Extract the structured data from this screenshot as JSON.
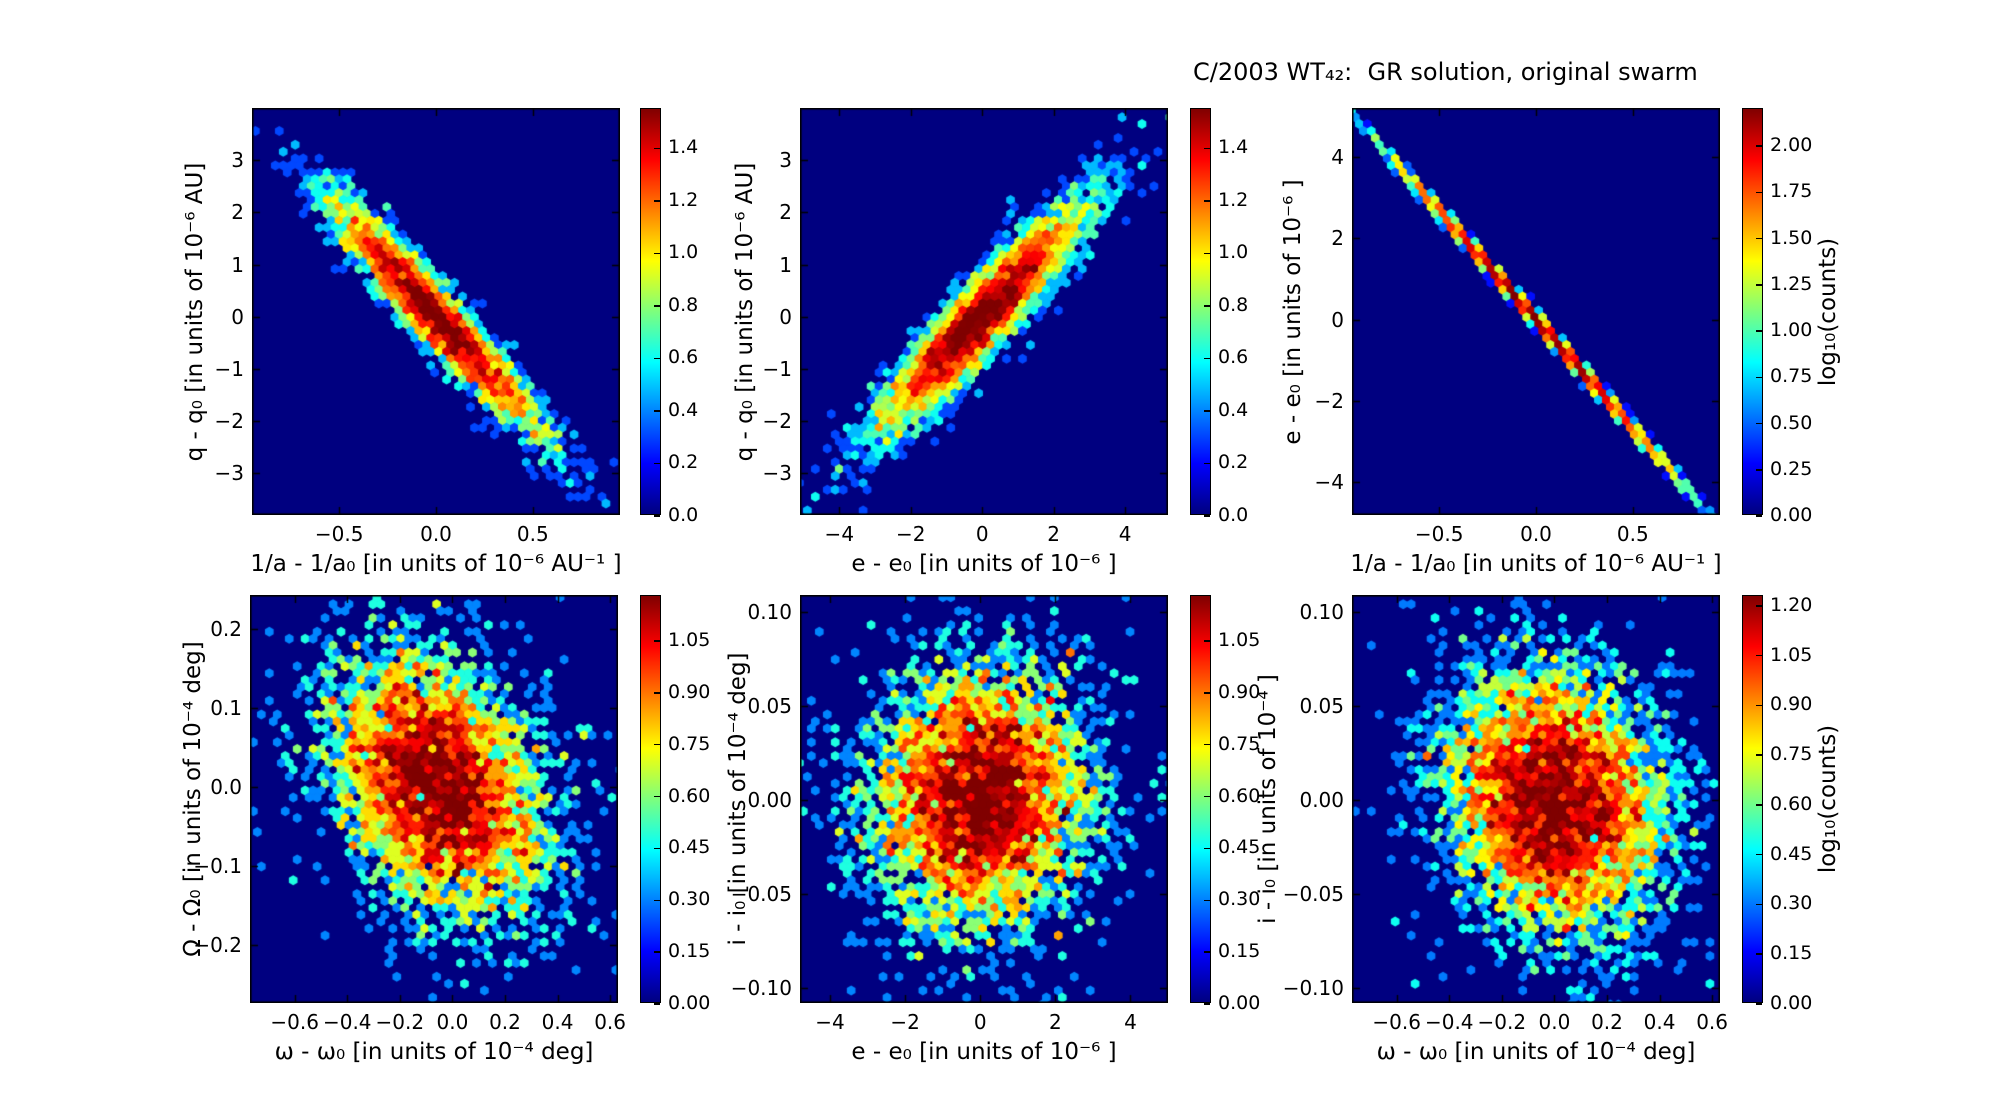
{
  "title": "C/2003 WT₄₂:  GR solution, original swarm",
  "colors": {
    "figure_background": "#ffffff",
    "plot_background": "#00007f",
    "axis": "#000000",
    "colormap": "jet"
  },
  "chart_data": [
    {
      "id": "top-left",
      "type": "hexbin",
      "xlabel": "1/a - 1/a₀ [in units of 10⁻⁶ AU⁻¹ ]",
      "ylabel": "q - q₀ [in units of 10⁻⁶ AU]",
      "xlim": [
        -0.95,
        0.95
      ],
      "ylim": [
        -3.8,
        4.0
      ],
      "x_tick_vals": [
        -0.5,
        0.0,
        0.5
      ],
      "x_tick_labels": [
        "−0.5",
        "0.0",
        "0.5"
      ],
      "y_tick_vals": [
        3,
        2,
        1,
        0,
        -1,
        -2,
        -3
      ],
      "y_tick_labels": [
        "3",
        "2",
        "1",
        "0",
        "−1",
        "−2",
        "−3"
      ],
      "colorbar": {
        "label": "",
        "vmax": 1.55,
        "tick_vals": [
          1.4,
          1.2,
          1.0,
          0.8,
          0.6,
          0.4,
          0.2,
          0.0
        ],
        "tick_labels": [
          "1.4",
          "1.2",
          "1.0",
          "0.8",
          "0.6",
          "0.4",
          "0.2",
          "0.0"
        ]
      },
      "distribution": {
        "description": "strong negative correlation ellipse, log10(counts) peak ~1.5",
        "cx": 0,
        "cy": 0,
        "sigma_x": 0.27,
        "sigma_y": 1.12,
        "rho": -0.95,
        "peak_counts": 38,
        "tail_frac": 0.08,
        "tail_scale": 1.7,
        "seed": 101
      }
    },
    {
      "id": "top-middle",
      "type": "hexbin",
      "xlabel": "e - e₀ [in units of 10⁻⁶ ]",
      "ylabel": "q - q₀ [in units of 10⁻⁶ AU]",
      "xlim": [
        -5.1,
        5.2
      ],
      "ylim": [
        -3.8,
        4.0
      ],
      "x_tick_vals": [
        -4,
        -2,
        0,
        2,
        4
      ],
      "x_tick_labels": [
        "−4",
        "−2",
        "0",
        "2",
        "4"
      ],
      "y_tick_vals": [
        3,
        2,
        1,
        0,
        -1,
        -2,
        -3
      ],
      "y_tick_labels": [
        "3",
        "2",
        "1",
        "0",
        "−1",
        "−2",
        "−3"
      ],
      "colorbar": {
        "label": "",
        "vmax": 1.55,
        "tick_vals": [
          1.4,
          1.2,
          1.0,
          0.8,
          0.6,
          0.4,
          0.2,
          0.0
        ],
        "tick_labels": [
          "1.4",
          "1.2",
          "1.0",
          "0.8",
          "0.6",
          "0.4",
          "0.2",
          "0.0"
        ]
      },
      "distribution": {
        "description": "strong positive correlation ellipse, log10(counts) peak ~1.5",
        "cx": 0,
        "cy": 0,
        "sigma_x": 1.5,
        "sigma_y": 1.12,
        "rho": 0.93,
        "peak_counts": 38,
        "tail_frac": 0.08,
        "tail_scale": 1.7,
        "seed": 202
      }
    },
    {
      "id": "top-right",
      "type": "hexbin",
      "xlabel": "1/a - 1/a₀ [in units of 10⁻⁶ AU⁻¹ ]",
      "ylabel": "e - e₀ [in units of 10⁻⁶ ]",
      "xlim": [
        -0.95,
        0.95
      ],
      "ylim": [
        -4.8,
        5.2
      ],
      "x_tick_vals": [
        -0.5,
        0.0,
        0.5
      ],
      "x_tick_labels": [
        "−0.5",
        "0.0",
        "0.5"
      ],
      "y_tick_vals": [
        4,
        2,
        0,
        -2,
        -4
      ],
      "y_tick_labels": [
        "4",
        "2",
        "0",
        "−2",
        "−4"
      ],
      "colorbar": {
        "label": "log₁₀(counts)",
        "vmax": 2.2,
        "tick_vals": [
          2.0,
          1.75,
          1.5,
          1.25,
          1.0,
          0.75,
          0.5,
          0.25,
          0.0
        ],
        "tick_labels": [
          "2.00",
          "1.75",
          "1.50",
          "1.25",
          "1.00",
          "0.75",
          "0.50",
          "0.25",
          "0.00"
        ]
      },
      "distribution": {
        "description": "extremely tight anti-correlated line, red core, blue ends",
        "cx": 0,
        "cy": 0,
        "sigma_x": 0.35,
        "sigma_y": 1.87,
        "rho": -0.9985,
        "peak_counts": 170,
        "tail_frac": 0.02,
        "tail_scale": 1.6,
        "seed": 303
      }
    },
    {
      "id": "bottom-left",
      "type": "hexbin",
      "xlabel": "ω - ω₀ [in units of 10⁻⁴ deg]",
      "ylabel": "Ω - Ω₀ [in units of 10⁻⁴ deg]",
      "xlim": [
        -0.77,
        0.63
      ],
      "ylim": [
        -0.273,
        0.243
      ],
      "x_tick_vals": [
        -0.6,
        -0.4,
        -0.2,
        0.0,
        0.2,
        0.4,
        0.6
      ],
      "x_tick_labels": [
        "−0.6",
        "−0.4",
        "−0.2",
        "0.0",
        "0.2",
        "0.4",
        "0.6"
      ],
      "y_tick_vals": [
        0.2,
        0.1,
        0.0,
        -0.1,
        -0.2
      ],
      "y_tick_labels": [
        "0.2",
        "0.1",
        "0.0",
        "−0.1",
        "−0.2"
      ],
      "colorbar": {
        "label": "",
        "vmax": 1.18,
        "tick_vals": [
          1.05,
          0.9,
          0.75,
          0.6,
          0.45,
          0.3,
          0.15,
          0.0
        ],
        "tick_labels": [
          "1.05",
          "0.90",
          "0.75",
          "0.60",
          "0.45",
          "0.30",
          "0.15",
          "0.00"
        ]
      },
      "distribution": {
        "description": "broad noisy blob, slight negative tilt, log10(counts) peak ~1.18",
        "cx": -0.05,
        "cy": 0,
        "sigma_x": 0.21,
        "sigma_y": 0.085,
        "rho": -0.33,
        "peak_counts": 16,
        "tail_frac": 0.1,
        "tail_scale": 1.8,
        "seed": 404
      }
    },
    {
      "id": "bottom-middle",
      "type": "hexbin",
      "xlabel": "e - e₀ [in units of 10⁻⁶ ]",
      "ylabel": "i - i₀ [in units of 10⁻⁴ deg]",
      "xlim": [
        -4.8,
        5.0
      ],
      "ylim": [
        -0.108,
        0.109
      ],
      "x_tick_vals": [
        -4,
        -2,
        0,
        2,
        4
      ],
      "x_tick_labels": [
        "−4",
        "−2",
        "0",
        "2",
        "4"
      ],
      "y_tick_vals": [
        0.1,
        0.05,
        0.0,
        -0.05,
        -0.1
      ],
      "y_tick_labels": [
        "0.10",
        "0.05",
        "0.00",
        "−0.05",
        "−0.10"
      ],
      "colorbar": {
        "label": "",
        "vmax": 1.18,
        "tick_vals": [
          1.05,
          0.9,
          0.75,
          0.6,
          0.45,
          0.3,
          0.15,
          0.0
        ],
        "tick_labels": [
          "1.05",
          "0.90",
          "0.75",
          "0.60",
          "0.45",
          "0.30",
          "0.15",
          "0.00"
        ]
      },
      "distribution": {
        "description": "roughly round noisy blob, log10(counts) peak ~1.18",
        "cx": 0,
        "cy": 0,
        "sigma_x": 1.5,
        "sigma_y": 0.036,
        "rho": 0.05,
        "peak_counts": 16,
        "tail_frac": 0.1,
        "tail_scale": 1.8,
        "seed": 505
      }
    },
    {
      "id": "bottom-right",
      "type": "hexbin",
      "xlabel": "ω - ω₀ [in units of 10⁻⁴ deg]",
      "ylabel": "i - i₀ [in units of 10⁻⁴ ]",
      "xlim": [
        -0.77,
        0.63
      ],
      "ylim": [
        -0.108,
        0.109
      ],
      "x_tick_vals": [
        -0.6,
        -0.4,
        -0.2,
        0.0,
        0.2,
        0.4,
        0.6
      ],
      "x_tick_labels": [
        "−0.6",
        "−0.4",
        "−0.2",
        "0.0",
        "0.2",
        "0.4",
        "0.6"
      ],
      "y_tick_vals": [
        0.1,
        0.05,
        0.0,
        -0.05,
        -0.1
      ],
      "y_tick_labels": [
        "0.10",
        "0.05",
        "0.00",
        "−0.05",
        "−0.10"
      ],
      "colorbar": {
        "label": "log₁₀(counts)",
        "vmax": 1.23,
        "tick_vals": [
          1.2,
          1.05,
          0.9,
          0.75,
          0.6,
          0.45,
          0.3,
          0.15,
          0.0
        ],
        "tick_labels": [
          "1.20",
          "1.05",
          "0.90",
          "0.75",
          "0.60",
          "0.45",
          "0.30",
          "0.15",
          "0.00"
        ]
      },
      "distribution": {
        "description": "round noisy blob, slight negative tilt, log10(counts) peak ~1.23",
        "cx": 0,
        "cy": 0,
        "sigma_x": 0.21,
        "sigma_y": 0.036,
        "rho": -0.15,
        "peak_counts": 18,
        "tail_frac": 0.1,
        "tail_scale": 1.8,
        "seed": 606
      }
    }
  ]
}
